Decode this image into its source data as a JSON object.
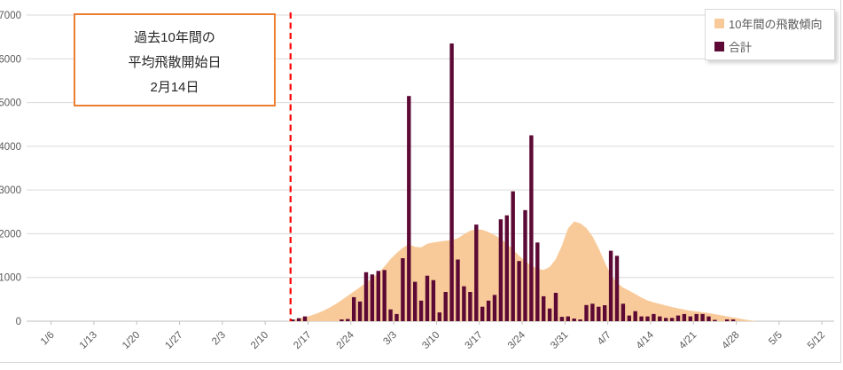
{
  "annotation": {
    "line1": "過去10年間の",
    "line2": "平均飛散開始日",
    "line3": "2月14日",
    "border_color": "#ED7D31"
  },
  "chart_data": {
    "type": "combo",
    "title": "",
    "grid": "horizontal",
    "legend_position": "top-right",
    "x_axis": {
      "unit": "day",
      "start_date": "1/2",
      "end_date": "5/13",
      "tick_labels": [
        "1/6",
        "1/13",
        "1/20",
        "1/27",
        "2/3",
        "2/10",
        "2/17",
        "2/24",
        "3/3",
        "3/10",
        "3/17",
        "3/24",
        "3/31",
        "4/7",
        "4/14",
        "4/21",
        "4/28",
        "5/5",
        "5/12"
      ]
    },
    "y_axis": {
      "min": 0,
      "max": 7000,
      "step": 1000,
      "tick_labels": [
        "0",
        "1000",
        "2000",
        "3000",
        "4000",
        "5000",
        "6000",
        "7000"
      ]
    },
    "marker_line": {
      "x": "2/14",
      "color": "#FF0000",
      "style": "dashed"
    },
    "series": [
      {
        "name": "10年間の飛散傾向",
        "type": "area",
        "color": "#F9CA99",
        "points": [
          [
            "2/13",
            0
          ],
          [
            "2/14",
            30
          ],
          [
            "2/15",
            60
          ],
          [
            "2/16",
            90
          ],
          [
            "2/17",
            130
          ],
          [
            "2/18",
            180
          ],
          [
            "2/19",
            240
          ],
          [
            "2/20",
            310
          ],
          [
            "2/21",
            390
          ],
          [
            "2/22",
            480
          ],
          [
            "2/23",
            580
          ],
          [
            "2/24",
            680
          ],
          [
            "2/25",
            780
          ],
          [
            "2/26",
            880
          ],
          [
            "2/27",
            990
          ],
          [
            "2/28",
            1100
          ],
          [
            "3/1",
            1250
          ],
          [
            "3/2",
            1420
          ],
          [
            "3/3",
            1560
          ],
          [
            "3/4",
            1680
          ],
          [
            "3/5",
            1760
          ],
          [
            "3/6",
            1700
          ],
          [
            "3/7",
            1690
          ],
          [
            "3/8",
            1770
          ],
          [
            "3/9",
            1800
          ],
          [
            "3/10",
            1820
          ],
          [
            "3/11",
            1840
          ],
          [
            "3/12",
            1850
          ],
          [
            "3/13",
            1900
          ],
          [
            "3/14",
            1990
          ],
          [
            "3/15",
            2070
          ],
          [
            "3/16",
            2100
          ],
          [
            "3/17",
            2090
          ],
          [
            "3/18",
            2040
          ],
          [
            "3/19",
            1970
          ],
          [
            "3/20",
            1880
          ],
          [
            "3/21",
            1770
          ],
          [
            "3/22",
            1640
          ],
          [
            "3/23",
            1500
          ],
          [
            "3/24",
            1370
          ],
          [
            "3/25",
            1270
          ],
          [
            "3/26",
            1200
          ],
          [
            "3/27",
            1170
          ],
          [
            "3/28",
            1240
          ],
          [
            "3/29",
            1420
          ],
          [
            "3/30",
            1730
          ],
          [
            "3/31",
            2120
          ],
          [
            "4/1",
            2280
          ],
          [
            "4/2",
            2240
          ],
          [
            "4/3",
            2130
          ],
          [
            "4/4",
            1940
          ],
          [
            "4/5",
            1670
          ],
          [
            "4/6",
            1350
          ],
          [
            "4/7",
            1060
          ],
          [
            "4/8",
            880
          ],
          [
            "4/9",
            770
          ],
          [
            "4/10",
            700
          ],
          [
            "4/11",
            620
          ],
          [
            "4/12",
            540
          ],
          [
            "4/13",
            475
          ],
          [
            "4/14",
            430
          ],
          [
            "4/15",
            395
          ],
          [
            "4/16",
            360
          ],
          [
            "4/17",
            325
          ],
          [
            "4/18",
            295
          ],
          [
            "4/19",
            265
          ],
          [
            "4/20",
            240
          ],
          [
            "4/21",
            225
          ],
          [
            "4/22",
            205
          ],
          [
            "4/23",
            185
          ],
          [
            "4/24",
            160
          ],
          [
            "4/25",
            135
          ],
          [
            "4/26",
            110
          ],
          [
            "4/27",
            85
          ],
          [
            "4/28",
            60
          ],
          [
            "4/29",
            35
          ],
          [
            "4/30",
            15
          ],
          [
            "5/1",
            0
          ]
        ]
      },
      {
        "name": "合計",
        "type": "bar",
        "color": "#5C0A35",
        "points": [
          [
            "2/14",
            40
          ],
          [
            "2/15",
            70
          ],
          [
            "2/16",
            110
          ],
          [
            "2/22",
            40
          ],
          [
            "2/23",
            50
          ],
          [
            "2/24",
            550
          ],
          [
            "2/25",
            450
          ],
          [
            "2/26",
            1120
          ],
          [
            "2/27",
            1070
          ],
          [
            "2/28",
            1150
          ],
          [
            "3/1",
            1170
          ],
          [
            "3/2",
            270
          ],
          [
            "3/3",
            165
          ],
          [
            "3/4",
            1440
          ],
          [
            "3/5",
            5150
          ],
          [
            "3/6",
            900
          ],
          [
            "3/7",
            470
          ],
          [
            "3/8",
            1040
          ],
          [
            "3/9",
            940
          ],
          [
            "3/10",
            200
          ],
          [
            "3/11",
            670
          ],
          [
            "3/12",
            6350
          ],
          [
            "3/13",
            1410
          ],
          [
            "3/14",
            800
          ],
          [
            "3/15",
            670
          ],
          [
            "3/16",
            2210
          ],
          [
            "3/17",
            330
          ],
          [
            "3/18",
            470
          ],
          [
            "3/19",
            600
          ],
          [
            "3/20",
            2330
          ],
          [
            "3/21",
            2420
          ],
          [
            "3/22",
            2970
          ],
          [
            "3/23",
            1375
          ],
          [
            "3/24",
            2540
          ],
          [
            "3/25",
            4250
          ],
          [
            "3/26",
            1800
          ],
          [
            "3/27",
            570
          ],
          [
            "3/28",
            290
          ],
          [
            "3/29",
            650
          ],
          [
            "3/30",
            100
          ],
          [
            "3/31",
            110
          ],
          [
            "4/1",
            60
          ],
          [
            "4/2",
            40
          ],
          [
            "4/3",
            370
          ],
          [
            "4/4",
            400
          ],
          [
            "4/5",
            330
          ],
          [
            "4/6",
            365
          ],
          [
            "4/7",
            1610
          ],
          [
            "4/8",
            1495
          ],
          [
            "4/9",
            400
          ],
          [
            "4/10",
            130
          ],
          [
            "4/11",
            230
          ],
          [
            "4/12",
            110
          ],
          [
            "4/13",
            110
          ],
          [
            "4/14",
            165
          ],
          [
            "4/15",
            110
          ],
          [
            "4/16",
            75
          ],
          [
            "4/17",
            75
          ],
          [
            "4/18",
            130
          ],
          [
            "4/19",
            165
          ],
          [
            "4/20",
            110
          ],
          [
            "4/21",
            165
          ],
          [
            "4/22",
            165
          ],
          [
            "4/23",
            110
          ],
          [
            "4/24",
            30
          ],
          [
            "4/26",
            40
          ],
          [
            "4/27",
            40
          ]
        ]
      }
    ]
  }
}
